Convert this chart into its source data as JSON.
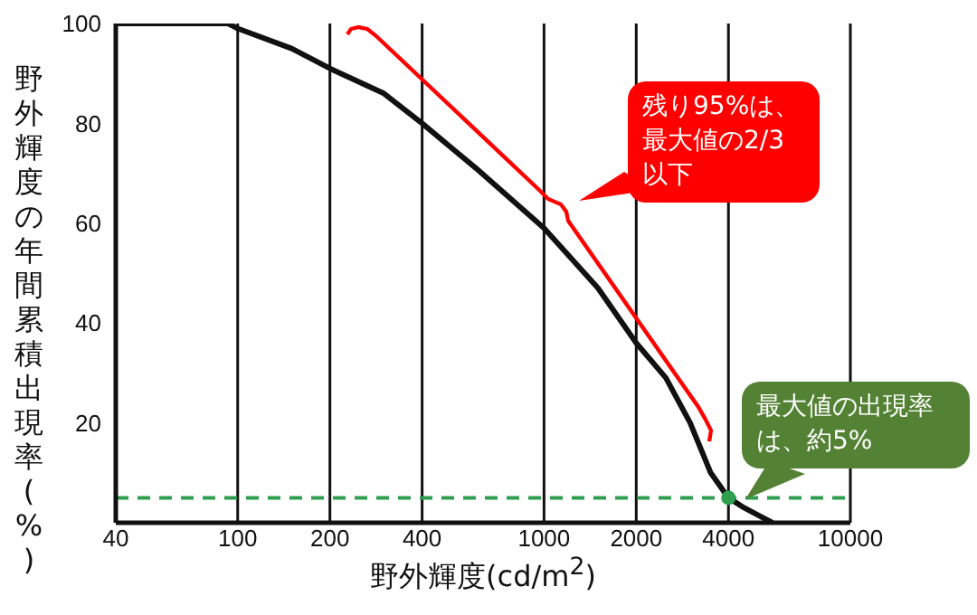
{
  "chart_data": {
    "type": "line",
    "xlabel": "野外輝度(cd/m$^{2}$)",
    "ylabel": "野外輝度の年間累積出現率(%)",
    "x": [
      40,
      93,
      100,
      150,
      200,
      300,
      400,
      600,
      1000,
      1500,
      2000,
      2500,
      3000,
      3500,
      4000,
      4500,
      5000,
      5570
    ],
    "series": [
      {
        "color": "#111111",
        "values": [
          100,
          100,
          99,
          95,
          91,
          86,
          80,
          71,
          59,
          47,
          36,
          29,
          20,
          10,
          5,
          3,
          1.5,
          0
        ]
      }
    ],
    "xlim": [
      40,
      10000
    ],
    "xticks": [
      40,
      100,
      200,
      400,
      1000,
      2000,
      4000,
      10000
    ],
    "ylim": [
      0,
      100
    ],
    "yticks": [
      20,
      40,
      60,
      80,
      100
    ],
    "log": "x",
    "grid": true,
    "legend": false,
    "marker": "none",
    "line_style": "solid",
    "ref_lines": [
      {
        "axis": "y",
        "value": 5,
        "color": "#2e9e4f",
        "line_style": "dashed"
      }
    ],
    "annotations": [
      "残り95%は、最大値の2/3以下",
      {
        "text": "最大値の出現率は、約5%",
        "x": 4000,
        "y": 5
      }
    ]
  }
}
